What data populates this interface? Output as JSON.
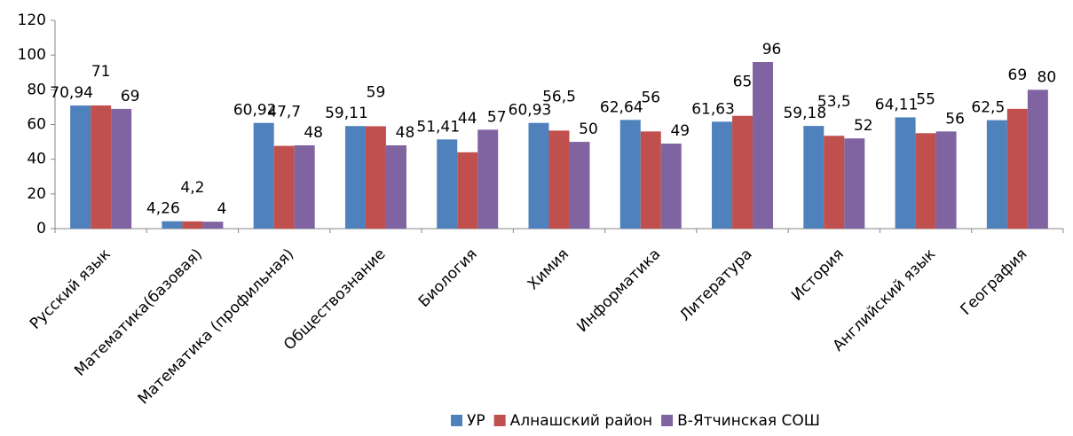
{
  "chart_data": {
    "type": "bar",
    "categories": [
      "Русский язык",
      "Математика(базовая)",
      "Математика (профильная)",
      "Обществознание",
      "Биология",
      "Химия",
      "Информатика",
      "Литература",
      "История",
      "Английский язык",
      "География"
    ],
    "series": [
      {
        "name": "УР",
        "color": "#4f81bd",
        "values": [
          70.94,
          4.26,
          60.92,
          59.11,
          51.41,
          60.93,
          62.64,
          61.63,
          59.18,
          64.11,
          62.5
        ],
        "value_labels": [
          "70,94",
          "4,26",
          "60,92",
          "59,11",
          "51,41",
          "60,93",
          "62,64",
          "61,63",
          "59,18",
          "64,11",
          "62,5"
        ]
      },
      {
        "name": "Алнашский район",
        "color": "#c0504d",
        "values": [
          71,
          4.2,
          47.7,
          59,
          44,
          56.5,
          56,
          65,
          53.5,
          55,
          69
        ],
        "value_labels": [
          "71",
          "4,2",
          "47,7",
          "59",
          "44",
          "56,5",
          "56",
          "65",
          "53,5",
          "55",
          "69"
        ]
      },
      {
        "name": "В-Ятчинская СОШ",
        "color": "#8064a2",
        "values": [
          69,
          4,
          48,
          48,
          57,
          50,
          49,
          96,
          52,
          56,
          80
        ],
        "value_labels": [
          "69",
          "4",
          "48",
          "48",
          "57",
          "50",
          "49",
          "96",
          "52",
          "56",
          "80"
        ]
      }
    ],
    "ylim": [
      0,
      120
    ],
    "yticks": [
      0,
      20,
      40,
      60,
      80,
      100,
      120
    ],
    "grid": false,
    "legend": "bottom"
  }
}
